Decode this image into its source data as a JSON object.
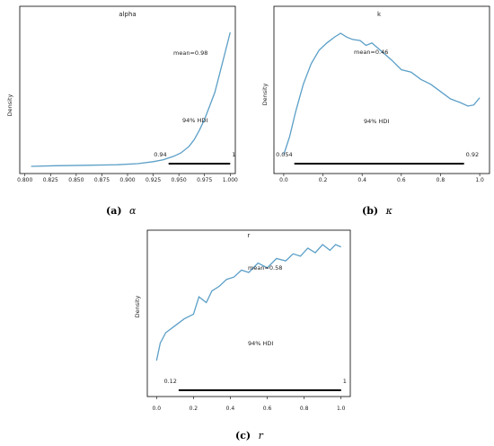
{
  "chart_data": [
    {
      "type": "line",
      "title": "alpha",
      "ylabel": "Density",
      "caption_tag": "(a)",
      "caption_symbol": "α",
      "xlim": [
        0.795,
        1.005
      ],
      "xticks": [
        0.8,
        0.825,
        0.85,
        0.875,
        0.9,
        0.925,
        0.95,
        0.975,
        1.0
      ],
      "xtick_labels": [
        "0.800",
        "0.825",
        "0.850",
        "0.875",
        "0.900",
        "0.925",
        "0.950",
        "0.975",
        "1.000"
      ],
      "ylim": [
        0,
        1.05
      ],
      "x": [
        0.806,
        0.83,
        0.86,
        0.89,
        0.91,
        0.925,
        0.935,
        0.945,
        0.952,
        0.96,
        0.965,
        0.97,
        0.975,
        0.98,
        0.985,
        0.99,
        0.995,
        1.0
      ],
      "y": [
        0.0,
        0.005,
        0.008,
        0.012,
        0.02,
        0.035,
        0.05,
        0.075,
        0.1,
        0.15,
        0.2,
        0.27,
        0.35,
        0.45,
        0.55,
        0.7,
        0.85,
        1.0
      ],
      "mean_label": "mean=0.98",
      "hdi_label": "94% HDI",
      "hdi": [
        0.94,
        1.0
      ],
      "hdi_low_label": "0.94",
      "hdi_high_label": "1"
    },
    {
      "type": "line",
      "title": "k",
      "ylabel": "Density",
      "caption_tag": "(b)",
      "caption_symbol": "κ",
      "xlim": [
        -0.05,
        1.05
      ],
      "xticks": [
        0.0,
        0.2,
        0.4,
        0.6,
        0.8,
        1.0
      ],
      "xtick_labels": [
        "0.0",
        "0.2",
        "0.4",
        "0.6",
        "0.8",
        "1.0"
      ],
      "ylim": [
        0,
        1.05
      ],
      "x": [
        0.0,
        0.03,
        0.06,
        0.1,
        0.14,
        0.18,
        0.22,
        0.26,
        0.29,
        0.32,
        0.35,
        0.39,
        0.42,
        0.45,
        0.5,
        0.55,
        0.6,
        0.65,
        0.7,
        0.75,
        0.8,
        0.85,
        0.9,
        0.94,
        0.97,
        1.0
      ],
      "y": [
        0.0,
        0.15,
        0.35,
        0.58,
        0.75,
        0.86,
        0.92,
        0.97,
        1.0,
        0.97,
        0.95,
        0.94,
        0.9,
        0.92,
        0.85,
        0.78,
        0.7,
        0.68,
        0.62,
        0.58,
        0.52,
        0.46,
        0.43,
        0.4,
        0.41,
        0.47
      ],
      "mean_label": "mean=0.46",
      "hdi_label": "94% HDI",
      "hdi": [
        0.054,
        0.92
      ],
      "hdi_low_label": "0.054",
      "hdi_high_label": "0.92"
    },
    {
      "type": "line",
      "title": "r",
      "ylabel": "Density",
      "caption_tag": "(c)",
      "caption_symbol": "r",
      "xlim": [
        -0.05,
        1.05
      ],
      "xticks": [
        0.0,
        0.2,
        0.4,
        0.6,
        0.8,
        1.0
      ],
      "xtick_labels": [
        "0.0",
        "0.2",
        "0.4",
        "0.6",
        "0.8",
        "1.0"
      ],
      "ylim": [
        0,
        1.05
      ],
      "x": [
        0.0,
        0.02,
        0.05,
        0.1,
        0.15,
        0.2,
        0.23,
        0.27,
        0.3,
        0.34,
        0.38,
        0.42,
        0.46,
        0.5,
        0.55,
        0.6,
        0.65,
        0.7,
        0.74,
        0.78,
        0.82,
        0.86,
        0.9,
        0.94,
        0.97,
        1.0
      ],
      "y": [
        0.0,
        0.15,
        0.24,
        0.3,
        0.36,
        0.4,
        0.55,
        0.5,
        0.6,
        0.64,
        0.7,
        0.72,
        0.78,
        0.76,
        0.84,
        0.8,
        0.88,
        0.86,
        0.92,
        0.9,
        0.97,
        0.93,
        1.0,
        0.95,
        1.0,
        0.98
      ],
      "mean_label": "mean=0.58",
      "hdi_label": "94% HDI",
      "hdi": [
        0.12,
        1.0
      ],
      "hdi_low_label": "0.12",
      "hdi_high_label": "1"
    }
  ]
}
